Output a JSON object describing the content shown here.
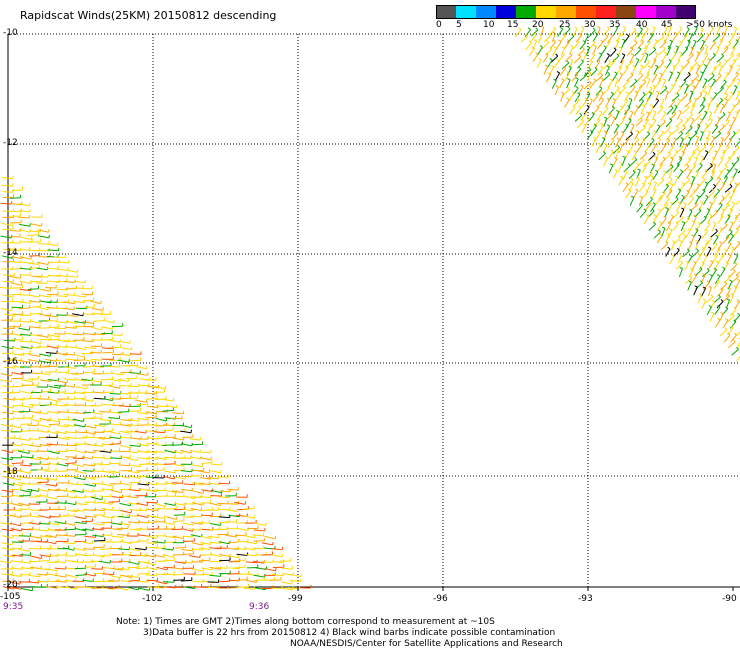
{
  "title": "Rapidscat Winds(25KM) 20150812 descending",
  "scale": {
    "colors": [
      "#555555",
      "#00e0ff",
      "#0088ff",
      "#0000dd",
      "#00aa00",
      "#ffd800",
      "#ffa800",
      "#ff5000",
      "#ff2020",
      "#8b4513",
      "#ff00ff",
      "#a000c8",
      "#400070"
    ],
    "labels": [
      "0",
      "5",
      "10",
      "15",
      "20",
      "25",
      "30",
      "35",
      "40",
      "45",
      ">50 knots"
    ]
  },
  "lat_labels": [
    "-10",
    "-12",
    "-14",
    "-16",
    "-18",
    "-20"
  ],
  "lon_labels": [
    "-105",
    "-102",
    "-99",
    "-96",
    "-93",
    "-90"
  ],
  "time_labels": [
    "9:35",
    "9:36"
  ],
  "notes": {
    "line1": "Note: 1) Times are GMT 2)Times along bottom correspond to measurement at ~10S",
    "line2": "3)Data buffer is 22 hrs from 20150812 4) Black wind barbs indicate possible contamination",
    "line3": "NOAA/NESDIS/Center for Satellite Applications and Research"
  },
  "barb_colors": {
    "yellow": "#ffd800",
    "orange": "#ffa800",
    "green": "#00aa00",
    "red": "#ff5000",
    "brown": "#8b4513",
    "black": "#000000"
  }
}
